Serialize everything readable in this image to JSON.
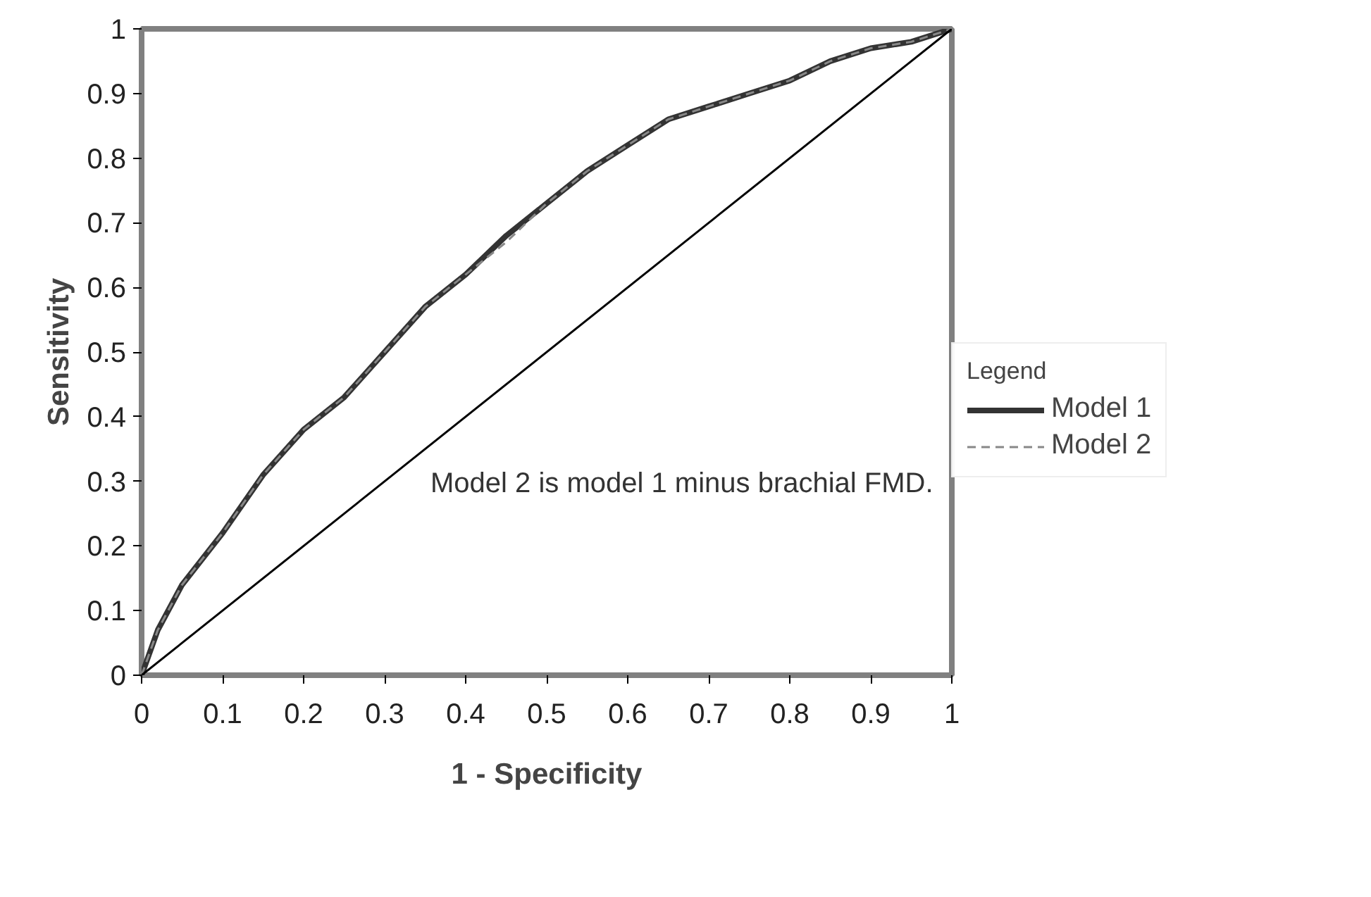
{
  "chart_data": {
    "type": "line",
    "xlabel": "1 - Specificity",
    "ylabel": "Sensitivity",
    "legend_title": "Legend",
    "legend": "right",
    "grid": false,
    "marker": "none",
    "xlim": [
      0,
      1
    ],
    "ylim": [
      0,
      1
    ],
    "xticks": [
      0,
      0.1,
      0.2,
      0.3,
      0.4,
      0.5,
      0.6,
      0.7,
      0.8,
      0.9,
      1
    ],
    "yticks": [
      0,
      0.1,
      0.2,
      0.3,
      0.4,
      0.5,
      0.6,
      0.7,
      0.8,
      0.9,
      1
    ],
    "series": [
      {
        "name": "Model 1",
        "color": "#333333",
        "line_style": "solid",
        "x": [
          0,
          0.02,
          0.05,
          0.1,
          0.15,
          0.2,
          0.25,
          0.3,
          0.35,
          0.4,
          0.45,
          0.5,
          0.55,
          0.6,
          0.65,
          0.7,
          0.75,
          0.8,
          0.85,
          0.9,
          0.95,
          1
        ],
        "values": [
          0,
          0.07,
          0.14,
          0.22,
          0.31,
          0.38,
          0.43,
          0.5,
          0.57,
          0.62,
          0.68,
          0.73,
          0.78,
          0.82,
          0.86,
          0.88,
          0.9,
          0.92,
          0.95,
          0.97,
          0.98,
          1
        ]
      },
      {
        "name": "Model 2",
        "color": "#888888",
        "line_style": "dashed",
        "x": [
          0,
          0.02,
          0.05,
          0.1,
          0.15,
          0.2,
          0.25,
          0.3,
          0.35,
          0.4,
          0.45,
          0.5,
          0.55,
          0.6,
          0.65,
          0.7,
          0.75,
          0.8,
          0.85,
          0.9,
          0.95,
          1
        ],
        "values": [
          0,
          0.07,
          0.14,
          0.22,
          0.31,
          0.38,
          0.43,
          0.5,
          0.57,
          0.62,
          0.67,
          0.73,
          0.78,
          0.82,
          0.86,
          0.88,
          0.9,
          0.92,
          0.95,
          0.97,
          0.98,
          1
        ]
      },
      {
        "color": "#000000",
        "line_style": "solid",
        "x": [
          0,
          1
        ],
        "values": [
          0,
          1
        ]
      }
    ],
    "annotations": [
      "Model 2 is model 1 minus brachial FMD."
    ]
  }
}
